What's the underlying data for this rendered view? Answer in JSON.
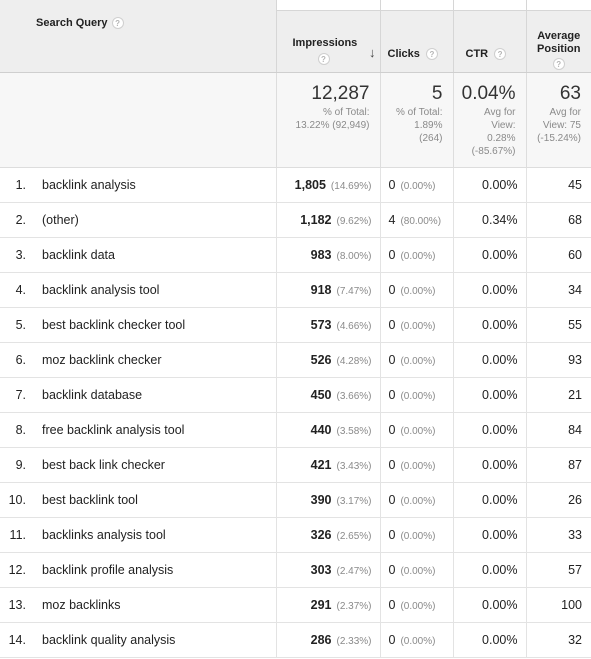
{
  "headers": {
    "query": "Search Query",
    "impressions": "Impressions",
    "clicks": "Clicks",
    "ctr": "CTR",
    "avg_position_line1": "Average",
    "avg_position_line2": "Position",
    "help": "?",
    "sort_arrow": "↓"
  },
  "totals": {
    "impressions": {
      "value": "12,287",
      "line1": "% of Total:",
      "line2": "13.22% (92,949)"
    },
    "clicks": {
      "value": "5",
      "line1": "% of Total:",
      "line2": "1.89%",
      "line3": "(264)"
    },
    "ctr": {
      "value": "0.04%",
      "line1": "Avg for",
      "line2": "View:",
      "line3": "0.28%",
      "line4": "(-85.67%)"
    },
    "position": {
      "value": "63",
      "line1": "Avg for",
      "line2": "View: 75",
      "line3": "(-15.24%)"
    }
  },
  "rows": [
    {
      "idx": "1.",
      "query": "backlink analysis",
      "impressions": "1,805",
      "imp_pct": "(14.69%)",
      "clicks": "0",
      "clk_pct": "(0.00%)",
      "ctr": "0.00%",
      "position": "45"
    },
    {
      "idx": "2.",
      "query": "(other)",
      "impressions": "1,182",
      "imp_pct": "(9.62%)",
      "clicks": "4",
      "clk_pct": "(80.00%)",
      "ctr": "0.34%",
      "position": "68"
    },
    {
      "idx": "3.",
      "query": "backlink data",
      "impressions": "983",
      "imp_pct": "(8.00%)",
      "clicks": "0",
      "clk_pct": "(0.00%)",
      "ctr": "0.00%",
      "position": "60"
    },
    {
      "idx": "4.",
      "query": "backlink analysis tool",
      "impressions": "918",
      "imp_pct": "(7.47%)",
      "clicks": "0",
      "clk_pct": "(0.00%)",
      "ctr": "0.00%",
      "position": "34"
    },
    {
      "idx": "5.",
      "query": "best backlink checker tool",
      "impressions": "573",
      "imp_pct": "(4.66%)",
      "clicks": "0",
      "clk_pct": "(0.00%)",
      "ctr": "0.00%",
      "position": "55"
    },
    {
      "idx": "6.",
      "query": "moz backlink checker",
      "impressions": "526",
      "imp_pct": "(4.28%)",
      "clicks": "0",
      "clk_pct": "(0.00%)",
      "ctr": "0.00%",
      "position": "93"
    },
    {
      "idx": "7.",
      "query": "backlink database",
      "impressions": "450",
      "imp_pct": "(3.66%)",
      "clicks": "0",
      "clk_pct": "(0.00%)",
      "ctr": "0.00%",
      "position": "21"
    },
    {
      "idx": "8.",
      "query": "free backlink analysis tool",
      "impressions": "440",
      "imp_pct": "(3.58%)",
      "clicks": "0",
      "clk_pct": "(0.00%)",
      "ctr": "0.00%",
      "position": "84"
    },
    {
      "idx": "9.",
      "query": "best back link checker",
      "impressions": "421",
      "imp_pct": "(3.43%)",
      "clicks": "0",
      "clk_pct": "(0.00%)",
      "ctr": "0.00%",
      "position": "87"
    },
    {
      "idx": "10.",
      "query": "best backlink tool",
      "impressions": "390",
      "imp_pct": "(3.17%)",
      "clicks": "0",
      "clk_pct": "(0.00%)",
      "ctr": "0.00%",
      "position": "26"
    },
    {
      "idx": "11.",
      "query": "backlinks analysis tool",
      "impressions": "326",
      "imp_pct": "(2.65%)",
      "clicks": "0",
      "clk_pct": "(0.00%)",
      "ctr": "0.00%",
      "position": "33"
    },
    {
      "idx": "12.",
      "query": "backlink profile analysis",
      "impressions": "303",
      "imp_pct": "(2.47%)",
      "clicks": "0",
      "clk_pct": "(0.00%)",
      "ctr": "0.00%",
      "position": "57"
    },
    {
      "idx": "13.",
      "query": "moz backlinks",
      "impressions": "291",
      "imp_pct": "(2.37%)",
      "clicks": "0",
      "clk_pct": "(0.00%)",
      "ctr": "0.00%",
      "position": "100"
    },
    {
      "idx": "14.",
      "query": "backlink quality analysis",
      "impressions": "286",
      "imp_pct": "(2.33%)",
      "clicks": "0",
      "clk_pct": "(0.00%)",
      "ctr": "0.00%",
      "position": "32"
    }
  ]
}
